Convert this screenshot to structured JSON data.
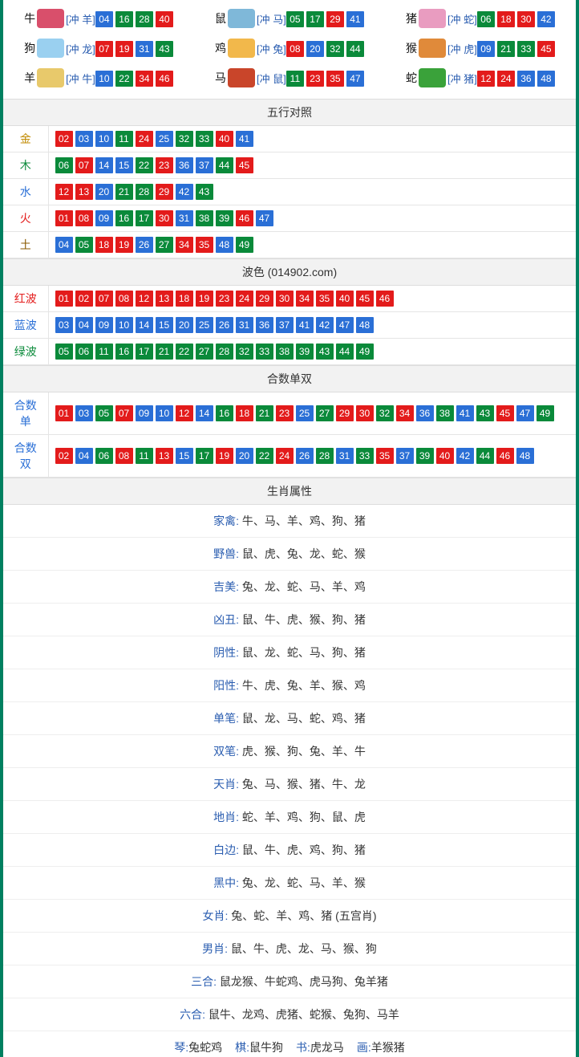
{
  "colors": {
    "red": "#e31b1b",
    "blue": "#2a6fd6",
    "green": "#0a8a3a",
    "link": "#2a5db0",
    "gold_text": "#c08a00",
    "wood_text": "#0a8a3a",
    "water_text": "#2a6fd6",
    "fire_text": "#e31b1b",
    "earth_text": "#8a5a00",
    "red_label": "#e31b1b",
    "blue_label": "#2a6fd6",
    "green_label": "#0a8a3a"
  },
  "zodiac": [
    {
      "name": "牛",
      "conflict": "[冲 羊]",
      "icon_color": "#d94f6b",
      "nums": [
        {
          "n": "04",
          "c": "blue"
        },
        {
          "n": "16",
          "c": "green"
        },
        {
          "n": "28",
          "c": "green"
        },
        {
          "n": "40",
          "c": "red"
        }
      ]
    },
    {
      "name": "鼠",
      "conflict": "[冲 马]",
      "icon_color": "#7fb8d9",
      "nums": [
        {
          "n": "05",
          "c": "green"
        },
        {
          "n": "17",
          "c": "green"
        },
        {
          "n": "29",
          "c": "red"
        },
        {
          "n": "41",
          "c": "blue"
        }
      ]
    },
    {
      "name": "猪",
      "conflict": "[冲 蛇]",
      "icon_color": "#e99cc0",
      "nums": [
        {
          "n": "06",
          "c": "green"
        },
        {
          "n": "18",
          "c": "red"
        },
        {
          "n": "30",
          "c": "red"
        },
        {
          "n": "42",
          "c": "blue"
        }
      ]
    },
    {
      "name": "狗",
      "conflict": "[冲 龙]",
      "icon_color": "#9ad0f0",
      "nums": [
        {
          "n": "07",
          "c": "red"
        },
        {
          "n": "19",
          "c": "red"
        },
        {
          "n": "31",
          "c": "blue"
        },
        {
          "n": "43",
          "c": "green"
        }
      ]
    },
    {
      "name": "鸡",
      "conflict": "[冲 兔]",
      "icon_color": "#f2b84b",
      "nums": [
        {
          "n": "08",
          "c": "red"
        },
        {
          "n": "20",
          "c": "blue"
        },
        {
          "n": "32",
          "c": "green"
        },
        {
          "n": "44",
          "c": "green"
        }
      ]
    },
    {
      "name": "猴",
      "conflict": "[冲 虎]",
      "icon_color": "#e08a3a",
      "nums": [
        {
          "n": "09",
          "c": "blue"
        },
        {
          "n": "21",
          "c": "green"
        },
        {
          "n": "33",
          "c": "green"
        },
        {
          "n": "45",
          "c": "red"
        }
      ]
    },
    {
      "name": "羊",
      "conflict": "[冲 牛]",
      "icon_color": "#e8c96b",
      "nums": [
        {
          "n": "10",
          "c": "blue"
        },
        {
          "n": "22",
          "c": "green"
        },
        {
          "n": "34",
          "c": "red"
        },
        {
          "n": "46",
          "c": "red"
        }
      ]
    },
    {
      "name": "马",
      "conflict": "[冲 鼠]",
      "icon_color": "#c9452a",
      "nums": [
        {
          "n": "11",
          "c": "green"
        },
        {
          "n": "23",
          "c": "red"
        },
        {
          "n": "35",
          "c": "red"
        },
        {
          "n": "47",
          "c": "blue"
        }
      ]
    },
    {
      "name": "蛇",
      "conflict": "[冲 猪]",
      "icon_color": "#3aa23a",
      "nums": [
        {
          "n": "12",
          "c": "red"
        },
        {
          "n": "24",
          "c": "red"
        },
        {
          "n": "36",
          "c": "blue"
        },
        {
          "n": "48",
          "c": "blue"
        }
      ]
    }
  ],
  "wuxing": {
    "title": "五行对照",
    "rows": [
      {
        "label": "金",
        "label_color": "gold_text",
        "nums": [
          {
            "n": "02",
            "c": "red"
          },
          {
            "n": "03",
            "c": "blue"
          },
          {
            "n": "10",
            "c": "blue"
          },
          {
            "n": "11",
            "c": "green"
          },
          {
            "n": "24",
            "c": "red"
          },
          {
            "n": "25",
            "c": "blue"
          },
          {
            "n": "32",
            "c": "green"
          },
          {
            "n": "33",
            "c": "green"
          },
          {
            "n": "40",
            "c": "red"
          },
          {
            "n": "41",
            "c": "blue"
          }
        ]
      },
      {
        "label": "木",
        "label_color": "wood_text",
        "nums": [
          {
            "n": "06",
            "c": "green"
          },
          {
            "n": "07",
            "c": "red"
          },
          {
            "n": "14",
            "c": "blue"
          },
          {
            "n": "15",
            "c": "blue"
          },
          {
            "n": "22",
            "c": "green"
          },
          {
            "n": "23",
            "c": "red"
          },
          {
            "n": "36",
            "c": "blue"
          },
          {
            "n": "37",
            "c": "blue"
          },
          {
            "n": "44",
            "c": "green"
          },
          {
            "n": "45",
            "c": "red"
          }
        ]
      },
      {
        "label": "水",
        "label_color": "water_text",
        "nums": [
          {
            "n": "12",
            "c": "red"
          },
          {
            "n": "13",
            "c": "red"
          },
          {
            "n": "20",
            "c": "blue"
          },
          {
            "n": "21",
            "c": "green"
          },
          {
            "n": "28",
            "c": "green"
          },
          {
            "n": "29",
            "c": "red"
          },
          {
            "n": "42",
            "c": "blue"
          },
          {
            "n": "43",
            "c": "green"
          }
        ]
      },
      {
        "label": "火",
        "label_color": "fire_text",
        "nums": [
          {
            "n": "01",
            "c": "red"
          },
          {
            "n": "08",
            "c": "red"
          },
          {
            "n": "09",
            "c": "blue"
          },
          {
            "n": "16",
            "c": "green"
          },
          {
            "n": "17",
            "c": "green"
          },
          {
            "n": "30",
            "c": "red"
          },
          {
            "n": "31",
            "c": "blue"
          },
          {
            "n": "38",
            "c": "green"
          },
          {
            "n": "39",
            "c": "green"
          },
          {
            "n": "46",
            "c": "red"
          },
          {
            "n": "47",
            "c": "blue"
          }
        ]
      },
      {
        "label": "土",
        "label_color": "earth_text",
        "nums": [
          {
            "n": "04",
            "c": "blue"
          },
          {
            "n": "05",
            "c": "green"
          },
          {
            "n": "18",
            "c": "red"
          },
          {
            "n": "19",
            "c": "red"
          },
          {
            "n": "26",
            "c": "blue"
          },
          {
            "n": "27",
            "c": "green"
          },
          {
            "n": "34",
            "c": "red"
          },
          {
            "n": "35",
            "c": "red"
          },
          {
            "n": "48",
            "c": "blue"
          },
          {
            "n": "49",
            "c": "green"
          }
        ]
      }
    ]
  },
  "bose": {
    "title": "波色  (014902.com)",
    "rows": [
      {
        "label": "红波",
        "label_color": "red_label",
        "nums": [
          {
            "n": "01",
            "c": "red"
          },
          {
            "n": "02",
            "c": "red"
          },
          {
            "n": "07",
            "c": "red"
          },
          {
            "n": "08",
            "c": "red"
          },
          {
            "n": "12",
            "c": "red"
          },
          {
            "n": "13",
            "c": "red"
          },
          {
            "n": "18",
            "c": "red"
          },
          {
            "n": "19",
            "c": "red"
          },
          {
            "n": "23",
            "c": "red"
          },
          {
            "n": "24",
            "c": "red"
          },
          {
            "n": "29",
            "c": "red"
          },
          {
            "n": "30",
            "c": "red"
          },
          {
            "n": "34",
            "c": "red"
          },
          {
            "n": "35",
            "c": "red"
          },
          {
            "n": "40",
            "c": "red"
          },
          {
            "n": "45",
            "c": "red"
          },
          {
            "n": "46",
            "c": "red"
          }
        ]
      },
      {
        "label": "蓝波",
        "label_color": "blue_label",
        "nums": [
          {
            "n": "03",
            "c": "blue"
          },
          {
            "n": "04",
            "c": "blue"
          },
          {
            "n": "09",
            "c": "blue"
          },
          {
            "n": "10",
            "c": "blue"
          },
          {
            "n": "14",
            "c": "blue"
          },
          {
            "n": "15",
            "c": "blue"
          },
          {
            "n": "20",
            "c": "blue"
          },
          {
            "n": "25",
            "c": "blue"
          },
          {
            "n": "26",
            "c": "blue"
          },
          {
            "n": "31",
            "c": "blue"
          },
          {
            "n": "36",
            "c": "blue"
          },
          {
            "n": "37",
            "c": "blue"
          },
          {
            "n": "41",
            "c": "blue"
          },
          {
            "n": "42",
            "c": "blue"
          },
          {
            "n": "47",
            "c": "blue"
          },
          {
            "n": "48",
            "c": "blue"
          }
        ]
      },
      {
        "label": "绿波",
        "label_color": "green_label",
        "nums": [
          {
            "n": "05",
            "c": "green"
          },
          {
            "n": "06",
            "c": "green"
          },
          {
            "n": "11",
            "c": "green"
          },
          {
            "n": "16",
            "c": "green"
          },
          {
            "n": "17",
            "c": "green"
          },
          {
            "n": "21",
            "c": "green"
          },
          {
            "n": "22",
            "c": "green"
          },
          {
            "n": "27",
            "c": "green"
          },
          {
            "n": "28",
            "c": "green"
          },
          {
            "n": "32",
            "c": "green"
          },
          {
            "n": "33",
            "c": "green"
          },
          {
            "n": "38",
            "c": "green"
          },
          {
            "n": "39",
            "c": "green"
          },
          {
            "n": "43",
            "c": "green"
          },
          {
            "n": "44",
            "c": "green"
          },
          {
            "n": "49",
            "c": "green"
          }
        ]
      }
    ]
  },
  "heshu": {
    "title": "合数单双",
    "rows": [
      {
        "label": "合数单",
        "label_color": "blue_label",
        "nums": [
          {
            "n": "01",
            "c": "red"
          },
          {
            "n": "03",
            "c": "blue"
          },
          {
            "n": "05",
            "c": "green"
          },
          {
            "n": "07",
            "c": "red"
          },
          {
            "n": "09",
            "c": "blue"
          },
          {
            "n": "10",
            "c": "blue"
          },
          {
            "n": "12",
            "c": "red"
          },
          {
            "n": "14",
            "c": "blue"
          },
          {
            "n": "16",
            "c": "green"
          },
          {
            "n": "18",
            "c": "red"
          },
          {
            "n": "21",
            "c": "green"
          },
          {
            "n": "23",
            "c": "red"
          },
          {
            "n": "25",
            "c": "blue"
          },
          {
            "n": "27",
            "c": "green"
          },
          {
            "n": "29",
            "c": "red"
          },
          {
            "n": "30",
            "c": "red"
          },
          {
            "n": "32",
            "c": "green"
          },
          {
            "n": "34",
            "c": "red"
          },
          {
            "n": "36",
            "c": "blue"
          },
          {
            "n": "38",
            "c": "green"
          },
          {
            "n": "41",
            "c": "blue"
          },
          {
            "n": "43",
            "c": "green"
          },
          {
            "n": "45",
            "c": "red"
          },
          {
            "n": "47",
            "c": "blue"
          },
          {
            "n": "49",
            "c": "green"
          }
        ]
      },
      {
        "label": "合数双",
        "label_color": "blue_label",
        "nums": [
          {
            "n": "02",
            "c": "red"
          },
          {
            "n": "04",
            "c": "blue"
          },
          {
            "n": "06",
            "c": "green"
          },
          {
            "n": "08",
            "c": "red"
          },
          {
            "n": "11",
            "c": "green"
          },
          {
            "n": "13",
            "c": "red"
          },
          {
            "n": "15",
            "c": "blue"
          },
          {
            "n": "17",
            "c": "green"
          },
          {
            "n": "19",
            "c": "red"
          },
          {
            "n": "20",
            "c": "blue"
          },
          {
            "n": "22",
            "c": "green"
          },
          {
            "n": "24",
            "c": "red"
          },
          {
            "n": "26",
            "c": "blue"
          },
          {
            "n": "28",
            "c": "green"
          },
          {
            "n": "31",
            "c": "blue"
          },
          {
            "n": "33",
            "c": "green"
          },
          {
            "n": "35",
            "c": "red"
          },
          {
            "n": "37",
            "c": "blue"
          },
          {
            "n": "39",
            "c": "green"
          },
          {
            "n": "40",
            "c": "red"
          },
          {
            "n": "42",
            "c": "blue"
          },
          {
            "n": "44",
            "c": "green"
          },
          {
            "n": "46",
            "c": "red"
          },
          {
            "n": "48",
            "c": "blue"
          }
        ]
      }
    ]
  },
  "attrs": {
    "title": "生肖属性",
    "rows": [
      {
        "label": "家禽:",
        "value": " 牛、马、羊、鸡、狗、猪"
      },
      {
        "label": "野兽:",
        "value": " 鼠、虎、兔、龙、蛇、猴"
      },
      {
        "label": "吉美:",
        "value": " 兔、龙、蛇、马、羊、鸡"
      },
      {
        "label": "凶丑:",
        "value": " 鼠、牛、虎、猴、狗、猪"
      },
      {
        "label": "阴性:",
        "value": " 鼠、龙、蛇、马、狗、猪"
      },
      {
        "label": "阳性:",
        "value": " 牛、虎、兔、羊、猴、鸡"
      },
      {
        "label": "单笔:",
        "value": " 鼠、龙、马、蛇、鸡、猪"
      },
      {
        "label": "双笔:",
        "value": " 虎、猴、狗、兔、羊、牛"
      },
      {
        "label": "天肖:",
        "value": " 兔、马、猴、猪、牛、龙"
      },
      {
        "label": "地肖:",
        "value": " 蛇、羊、鸡、狗、鼠、虎"
      },
      {
        "label": "白边:",
        "value": " 鼠、牛、虎、鸡、狗、猪"
      },
      {
        "label": "黑中:",
        "value": " 兔、龙、蛇、马、羊、猴"
      },
      {
        "label": "女肖:",
        "value": " 兔、蛇、羊、鸡、猪 (五宫肖)"
      },
      {
        "label": "男肖:",
        "value": " 鼠、牛、虎、龙、马、猴、狗"
      },
      {
        "label": "三合:",
        "value": " 鼠龙猴、牛蛇鸡、虎马狗、兔羊猪"
      },
      {
        "label": "六合:",
        "value": " 鼠牛、龙鸡、虎猪、蛇猴、兔狗、马羊"
      }
    ]
  },
  "bottom": [
    {
      "label": "琴:",
      "value": "兔蛇鸡"
    },
    {
      "label": "棋:",
      "value": "鼠牛狗"
    },
    {
      "label": "书:",
      "value": "虎龙马"
    },
    {
      "label": "画:",
      "value": "羊猴猪"
    }
  ]
}
